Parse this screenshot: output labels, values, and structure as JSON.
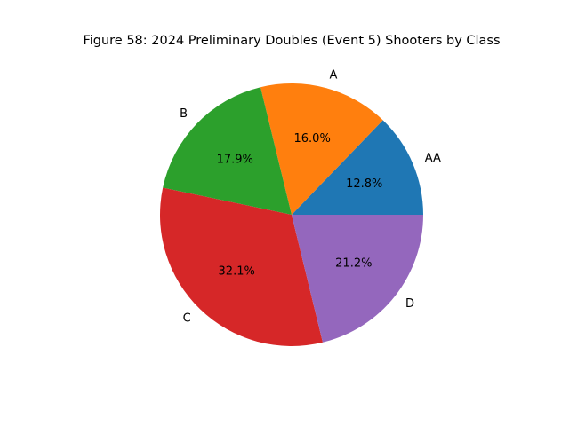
{
  "chart_data": {
    "type": "pie",
    "title": "Figure 58: 2024 Preliminary Doubles (Event 5) Shooters by Class",
    "start_angle_deg": 0,
    "direction": "counterclockwise",
    "legend": "none",
    "slices": [
      {
        "label": "AA",
        "percent": 12.8,
        "percent_label": "12.8%",
        "color": "#1f77b4"
      },
      {
        "label": "A",
        "percent": 16.0,
        "percent_label": "16.0%",
        "color": "#ff7f0e"
      },
      {
        "label": "B",
        "percent": 17.9,
        "percent_label": "17.9%",
        "color": "#2ca02c"
      },
      {
        "label": "C",
        "percent": 32.1,
        "percent_label": "32.1%",
        "color": "#d62728"
      },
      {
        "label": "D",
        "percent": 21.2,
        "percent_label": "21.2%",
        "color": "#9467bd"
      }
    ]
  }
}
